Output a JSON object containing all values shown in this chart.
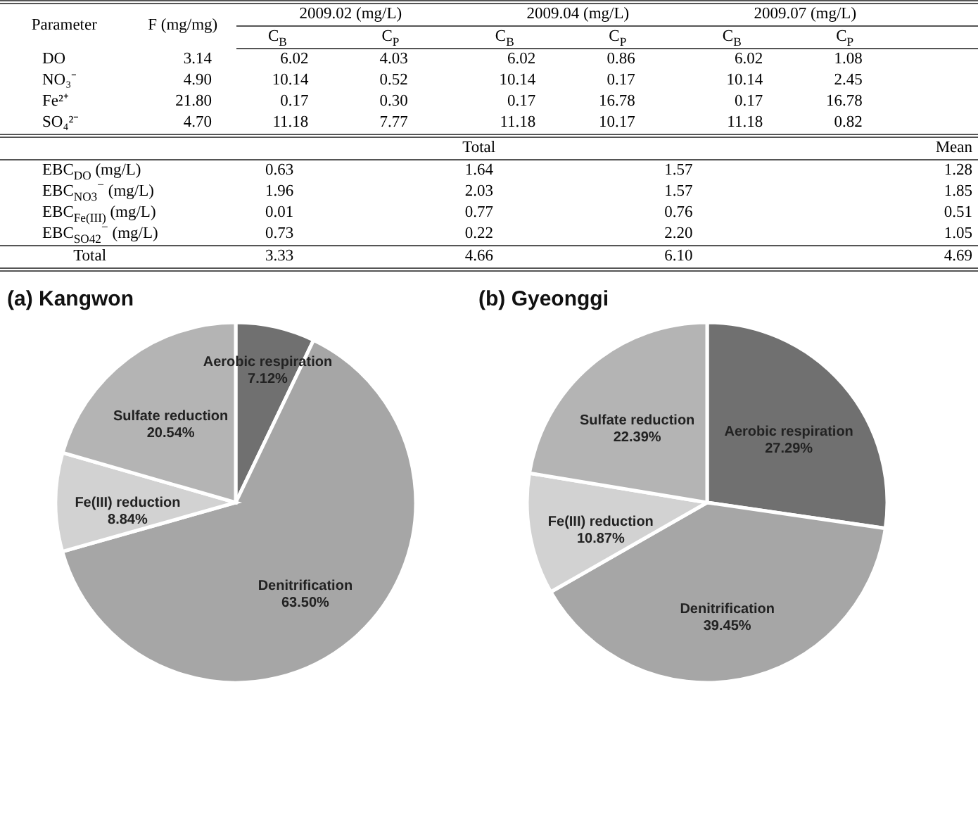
{
  "chart_data": [
    {
      "type": "other",
      "annotations": [
        "Parameter",
        "F (mg/mg)",
        "2009.02  (mg/L)",
        "2009.04  (mg/L)",
        "2009.07  (mg/L)",
        "C$_{B}$",
        "C$_{P}$",
        "C$_{B}$",
        "C$_{P}$",
        "C$_{B}$",
        "C$_{P}$",
        "DO",
        "3.14",
        "6.02",
        "4.03",
        "6.02",
        "0.86",
        "6.02",
        "1.08",
        "NO₃⁻",
        "4.90",
        "10.14",
        "0.52",
        "10.14",
        "0.17",
        "10.14",
        "2.45",
        "Fe²⁺",
        "21.80",
        "0.17",
        "0.30",
        "0.17",
        "16.78",
        "0.17",
        "16.78",
        "SO₄²⁻",
        "4.70",
        "11.18",
        "7.77",
        "11.18",
        "10.17",
        "11.18",
        "0.82",
        "Total",
        "Mean",
        "EBC$_{DO}$ (mg/L)",
        "0.63",
        "1.64",
        "1.57",
        "1.28",
        "EBC$_{NO3}$$^{−}$ (mg/L)",
        "1.96",
        "2.03",
        "1.57",
        "1.85",
        "EBC$_{Fe(III)}$ (mg/L)",
        "0.01",
        "0.77",
        "0.76",
        "0.51",
        "EBC$_{SO42}$$^{−}$ (mg/L)",
        "0.73",
        "0.22",
        "2.20",
        "1.05",
        "Total",
        "3.33",
        "4.66",
        "6.10",
        "4.69"
      ]
    },
    {
      "type": "pie",
      "title": "(a) Kangwon",
      "categories": [
        "Aerobic respiration",
        "Denitrification",
        "Fe(III) reduction",
        "Sulfate reduction"
      ],
      "values": [
        7.12,
        63.5,
        8.84,
        20.54
      ],
      "colors": [
        "#707070",
        "#a6a6a6",
        "#d2d2d2",
        "#b4b4b4"
      ],
      "value_labels": [
        "7.12%",
        "63.50%",
        "8.84%",
        "20.54%"
      ]
    },
    {
      "type": "pie",
      "title": "(b) Gyeonggi",
      "categories": [
        "Aerobic respiration",
        "Denitrification",
        "Fe(III) reduction",
        "Sulfate reduction"
      ],
      "values": [
        27.29,
        39.45,
        10.87,
        22.39
      ],
      "colors": [
        "#707070",
        "#a6a6a6",
        "#d2d2d2",
        "#b4b4b4"
      ],
      "value_labels": [
        "27.29%",
        "39.45%",
        "10.87%",
        "22.39%"
      ]
    }
  ]
}
